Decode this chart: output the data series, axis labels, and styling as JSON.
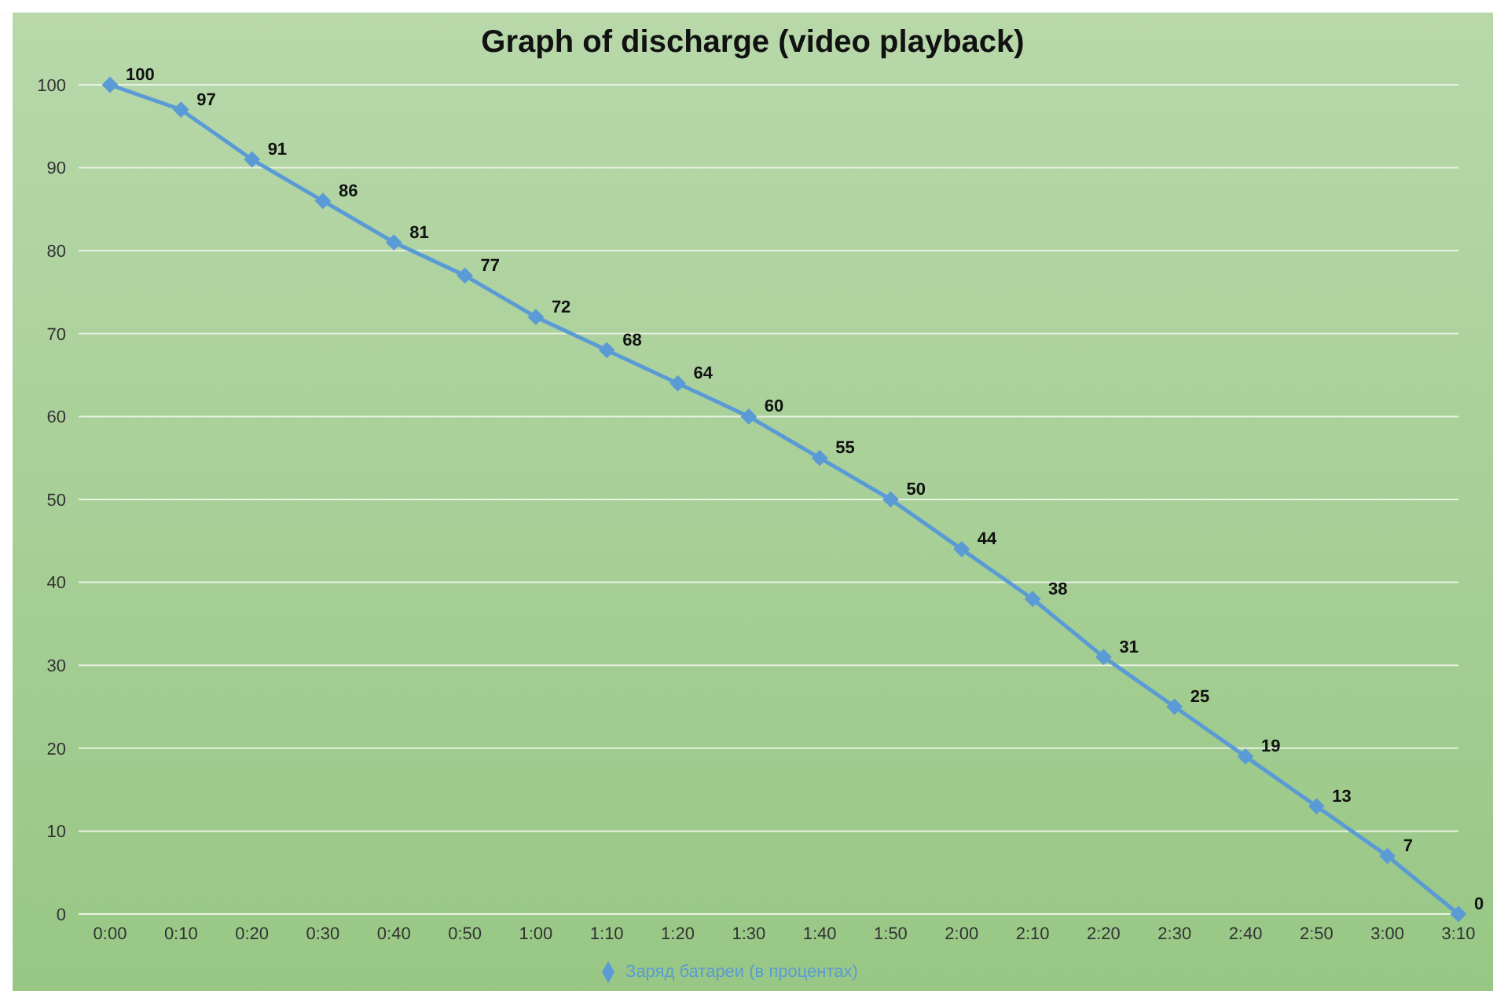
{
  "chart_data": {
    "type": "line",
    "title": "Graph of discharge (video playback)",
    "categories": [
      "0:00",
      "0:10",
      "0:20",
      "0:30",
      "0:40",
      "0:50",
      "1:00",
      "1:10",
      "1:20",
      "1:30",
      "1:40",
      "1:50",
      "2:00",
      "2:10",
      "2:20",
      "2:30",
      "2:40",
      "2:50",
      "3:00",
      "3:10"
    ],
    "series": [
      {
        "name": "Заряд батареи (в процентах)",
        "color": "#5b9bd5",
        "values": [
          100,
          97,
          91,
          86,
          81,
          77,
          72,
          68,
          64,
          60,
          55,
          50,
          44,
          38,
          31,
          25,
          19,
          13,
          7,
          0
        ]
      }
    ],
    "ylim": [
      0,
      100
    ],
    "yticks": [
      0,
      10,
      20,
      30,
      40,
      50,
      60,
      70,
      80,
      90,
      100
    ],
    "grid": "y",
    "legend": "bottom",
    "marker": "diamond",
    "line_style": "solid",
    "data_labels": true
  }
}
